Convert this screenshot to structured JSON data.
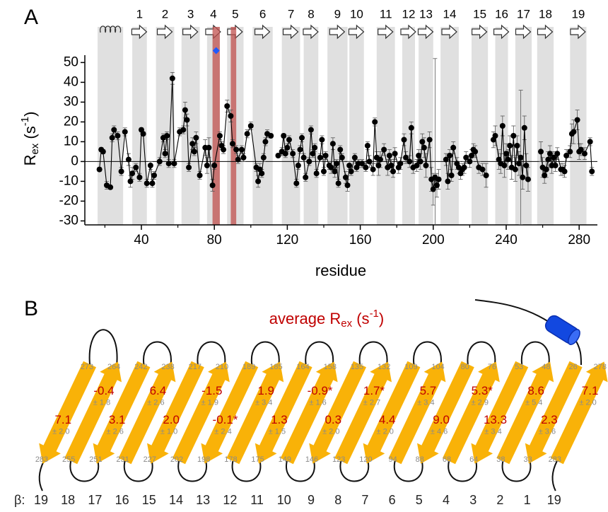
{
  "panel_a": {
    "label": "A"
  },
  "chart_data": {
    "type": "scatter",
    "x": [
      17,
      18,
      19,
      21,
      23,
      24,
      25,
      27,
      29,
      31,
      33,
      34,
      35,
      37,
      39,
      40,
      41,
      43,
      45,
      46,
      47,
      50,
      52,
      53,
      54,
      55,
      57,
      58,
      61,
      63,
      64,
      65,
      66,
      68,
      69,
      70,
      72,
      75,
      76,
      77,
      79,
      80,
      83,
      84,
      85,
      87,
      89,
      90,
      92,
      93,
      95,
      96,
      98,
      100,
      103,
      104,
      105,
      106,
      107,
      108,
      109,
      111,
      113,
      115,
      117,
      118,
      119,
      120,
      121,
      123,
      125,
      126,
      127,
      128,
      129,
      130,
      132,
      133,
      134,
      135,
      136,
      138,
      139,
      140,
      141,
      143,
      144,
      145,
      146,
      147,
      148,
      149,
      150,
      152,
      153,
      154,
      155,
      157,
      158,
      159,
      161,
      163,
      164,
      165,
      167,
      168,
      169,
      170,
      171,
      173,
      175,
      176,
      177,
      178,
      179,
      181,
      182,
      184,
      185,
      187,
      188,
      189,
      191,
      192,
      193,
      194,
      195,
      196,
      198,
      199,
      200,
      201,
      202,
      203,
      205,
      207,
      208,
      209,
      210,
      211,
      213,
      214,
      215,
      216,
      217,
      218,
      220,
      221,
      222,
      223,
      225,
      227,
      229,
      231,
      233,
      234,
      236,
      237,
      238,
      239,
      240,
      241,
      242,
      243,
      244,
      245,
      246,
      247,
      248,
      249,
      250,
      251,
      252,
      255,
      259,
      260,
      261,
      262,
      263,
      264,
      265,
      266,
      267,
      268,
      270,
      271,
      272,
      273,
      275,
      276,
      277,
      279,
      280,
      281,
      283,
      286,
      287
    ],
    "values": [
      -4,
      6,
      5,
      -12,
      -13,
      12,
      16,
      13,
      -5,
      15,
      1,
      -10,
      -6,
      -3,
      -8,
      16,
      14,
      -11,
      -2,
      -11,
      -7,
      0,
      12,
      4,
      13,
      -1,
      42,
      -1,
      15,
      16,
      26,
      21,
      -3,
      9,
      5,
      12,
      -7,
      7,
      -2,
      7,
      -12,
      -2,
      13,
      8,
      6,
      28,
      23,
      9,
      6,
      1,
      6,
      2,
      14,
      18,
      -3,
      -10,
      -4,
      -6,
      2,
      10,
      14,
      13,
      null,
      3,
      5,
      13,
      4,
      7,
      11,
      4,
      -11,
      -2,
      6,
      12,
      2,
      -8,
      0,
      16,
      4,
      7,
      -6,
      2,
      11,
      -5,
      3,
      -2,
      -3,
      9,
      -5,
      -1,
      -11,
      6,
      2,
      -8,
      -12,
      -2,
      -5,
      2,
      -3,
      -1,
      -1,
      -3,
      8,
      0,
      -4,
      20,
      2,
      -2,
      1,
      6,
      -3,
      3,
      -2,
      -5,
      4,
      -3,
      -1,
      11,
      2,
      0,
      17,
      -3,
      -2,
      3,
      0,
      10,
      7,
      -2,
      11,
      -9,
      -14,
      -8,
      -12,
      -9,
      null,
      1,
      -10,
      3,
      -7,
      7,
      -1,
      -3,
      -6,
      -4,
      -3,
      2,
      0,
      3,
      6,
      5,
      -3,
      -4,
      -7,
      null,
      11,
      13,
      1,
      -1,
      18,
      -2,
      4,
      1,
      8,
      -3,
      13,
      -4,
      8,
      -1,
      2,
      -8,
      17,
      -2,
      -9,
      null,
      5,
      -3,
      -7,
      -4,
      1,
      4,
      -2,
      2,
      -2,
      4,
      -4,
      -4,
      -5,
      3,
      5,
      14,
      15,
      21,
      5,
      6,
      4,
      10,
      -5
    ],
    "errors": [
      1,
      1,
      1,
      2,
      1,
      2,
      2,
      2,
      2,
      2,
      3,
      3,
      3,
      2,
      2,
      1,
      1,
      2,
      2,
      2,
      2,
      2,
      2,
      2,
      2,
      2,
      3,
      2,
      2,
      2,
      4,
      3,
      2,
      3,
      2,
      3,
      2,
      4,
      4,
      5,
      3,
      2,
      2,
      2,
      2,
      3,
      3,
      2,
      2,
      2,
      2,
      2,
      2,
      2,
      2,
      3,
      3,
      2,
      2,
      2,
      2,
      1,
      null,
      1,
      2,
      1,
      2,
      2,
      2,
      2,
      2,
      2,
      2,
      2,
      2,
      2,
      2,
      2,
      2,
      2,
      2,
      2,
      2,
      2,
      2,
      2,
      3,
      3,
      3,
      2,
      2,
      2,
      2,
      3,
      3,
      2,
      2,
      2,
      2,
      2,
      2,
      2,
      2,
      3,
      3,
      2,
      3,
      5,
      4,
      3,
      4,
      3,
      3,
      3,
      3,
      3,
      3,
      3,
      3,
      3,
      3,
      3,
      3,
      3,
      4,
      4,
      5,
      6,
      4,
      6,
      8,
      60,
      6,
      5,
      null,
      3,
      4,
      3,
      3,
      3,
      3,
      3,
      3,
      3,
      3,
      3,
      3,
      3,
      3,
      3,
      3,
      3,
      6,
      null,
      4,
      5,
      5,
      5,
      5,
      6,
      5,
      5,
      5,
      6,
      5,
      6,
      5,
      6,
      34,
      6,
      6,
      6,
      6,
      null,
      5,
      5,
      4,
      4,
      4,
      4,
      4,
      3,
      3,
      3,
      3,
      3,
      3,
      3,
      3,
      5,
      6,
      5,
      4,
      3,
      3,
      2,
      2
    ],
    "color": "#000000",
    "xlim": [
      9,
      290
    ],
    "ylim": [
      -32,
      58
    ],
    "xticks": [
      40,
      80,
      120,
      160,
      200,
      240,
      280
    ],
    "xminorticks": [
      20,
      60,
      100,
      140,
      180,
      220,
      260
    ],
    "yticks": [
      -30,
      -20,
      -10,
      0,
      10,
      20,
      30,
      40,
      50
    ],
    "xlabel": "residue",
    "ylabel": {
      "main": "R",
      "sub": "ex",
      "pre": " (s",
      "sup": "-1",
      "post": ")"
    },
    "shade_color": "#e0e0e0",
    "helix": {
      "start": 16,
      "end": 30
    },
    "strands": [
      {
        "label": "1",
        "start": 35,
        "end": 43
      },
      {
        "label": "2",
        "start": 48,
        "end": 58
      },
      {
        "label": "3",
        "start": 62,
        "end": 72
      },
      {
        "label": "4",
        "start": 76,
        "end": 83
      },
      {
        "label": "5",
        "start": 87,
        "end": 96
      },
      {
        "label": "6",
        "start": 101,
        "end": 112
      },
      {
        "label": "7",
        "start": 117,
        "end": 127
      },
      {
        "label": "8",
        "start": 129,
        "end": 137
      },
      {
        "label": "9",
        "start": 142,
        "end": 153
      },
      {
        "label": "10",
        "start": 154,
        "end": 162
      },
      {
        "label": "11",
        "start": 169,
        "end": 179
      },
      {
        "label": "12",
        "start": 183,
        "end": 190
      },
      {
        "label": "13",
        "start": 192,
        "end": 200
      },
      {
        "label": "14",
        "start": 204,
        "end": 214
      },
      {
        "label": "15",
        "start": 221,
        "end": 230
      },
      {
        "label": "16",
        "start": 234,
        "end": 241
      },
      {
        "label": "17",
        "start": 245,
        "end": 254
      },
      {
        "label": "18",
        "start": 257,
        "end": 266
      },
      {
        "label": "19",
        "start": 275,
        "end": 284
      }
    ],
    "highlight_color": "#c0504d",
    "highlights": [
      {
        "start": 79,
        "end": 83
      },
      {
        "start": 89,
        "end": 92
      }
    ],
    "marker": {
      "x": 81,
      "y": 56,
      "color": "#1e5aff"
    }
  },
  "panel_b": {
    "label": "B",
    "title": {
      "main": "average R",
      "sub": "ex",
      "pre": " (s",
      "sup": "-1",
      "post": ")"
    },
    "beta_prefix": "β:",
    "strands": [
      {
        "beta": "19",
        "top": "273",
        "bottom": "283",
        "value": "7.1",
        "error": "± 2.0"
      },
      {
        "beta": "18",
        "top": "264",
        "bottom": "255",
        "value": "-0.4",
        "error": "± 1.8"
      },
      {
        "beta": "17",
        "top": "242",
        "bottom": "251",
        "value": "3.1",
        "error": "± 2.6"
      },
      {
        "beta": "16",
        "top": "238",
        "bottom": "231",
        "value": "6.4",
        "error": "± 2.6"
      },
      {
        "beta": "15",
        "top": "217",
        "bottom": "227",
        "value": "2.0",
        "error": "± 1.0"
      },
      {
        "beta": "14",
        "top": "210",
        "bottom": "202",
        "value": "-1.5",
        "error": "± 1.9"
      },
      {
        "beta": "13",
        "top": "189",
        "bottom": "198",
        "value": "-0.1*",
        "error": "± 2.4"
      },
      {
        "beta": "12",
        "top": "185",
        "bottom": "178",
        "value": "1.9",
        "error": "± 3.4"
      },
      {
        "beta": "11",
        "top": "164",
        "bottom": "175",
        "value": "1.3",
        "error": "± 1.5"
      },
      {
        "beta": "10",
        "top": "158",
        "bottom": "149",
        "value": "-0.9*",
        "error": "± 1.6"
      },
      {
        "beta": "9",
        "top": "135",
        "bottom": "146",
        "value": "0.3",
        "error": "± 2.0"
      },
      {
        "beta": "8",
        "top": "132",
        "bottom": "123",
        "value": "1.7*",
        "error": "± 2.7"
      },
      {
        "beta": "7",
        "top": "109",
        "bottom": "120",
        "value": "4.4",
        "error": "± 2.0"
      },
      {
        "beta": "6",
        "top": "104",
        "bottom": "94",
        "value": "5.7",
        "error": "± 3.4"
      },
      {
        "beta": "5",
        "top": "80",
        "bottom": "88",
        "value": "9.0",
        "error": "± 4.6"
      },
      {
        "beta": "4",
        "top": "76",
        "bottom": "68",
        "value": "5.3*",
        "error": "± 2.9"
      },
      {
        "beta": "3",
        "top": "53",
        "bottom": "64",
        "value": "13.3",
        "error": "± 3.4"
      },
      {
        "beta": "2",
        "top": "48",
        "bottom": "38",
        "value": "8.6",
        "error": "± 5.4"
      },
      {
        "beta": "1",
        "top": "26",
        "bottom": "33",
        "value": "2.3",
        "error": "± 3.6"
      },
      {
        "beta": "19",
        "top": "278",
        "bottom": "283",
        "value": "7.1",
        "error": "± 2.0"
      }
    ]
  }
}
